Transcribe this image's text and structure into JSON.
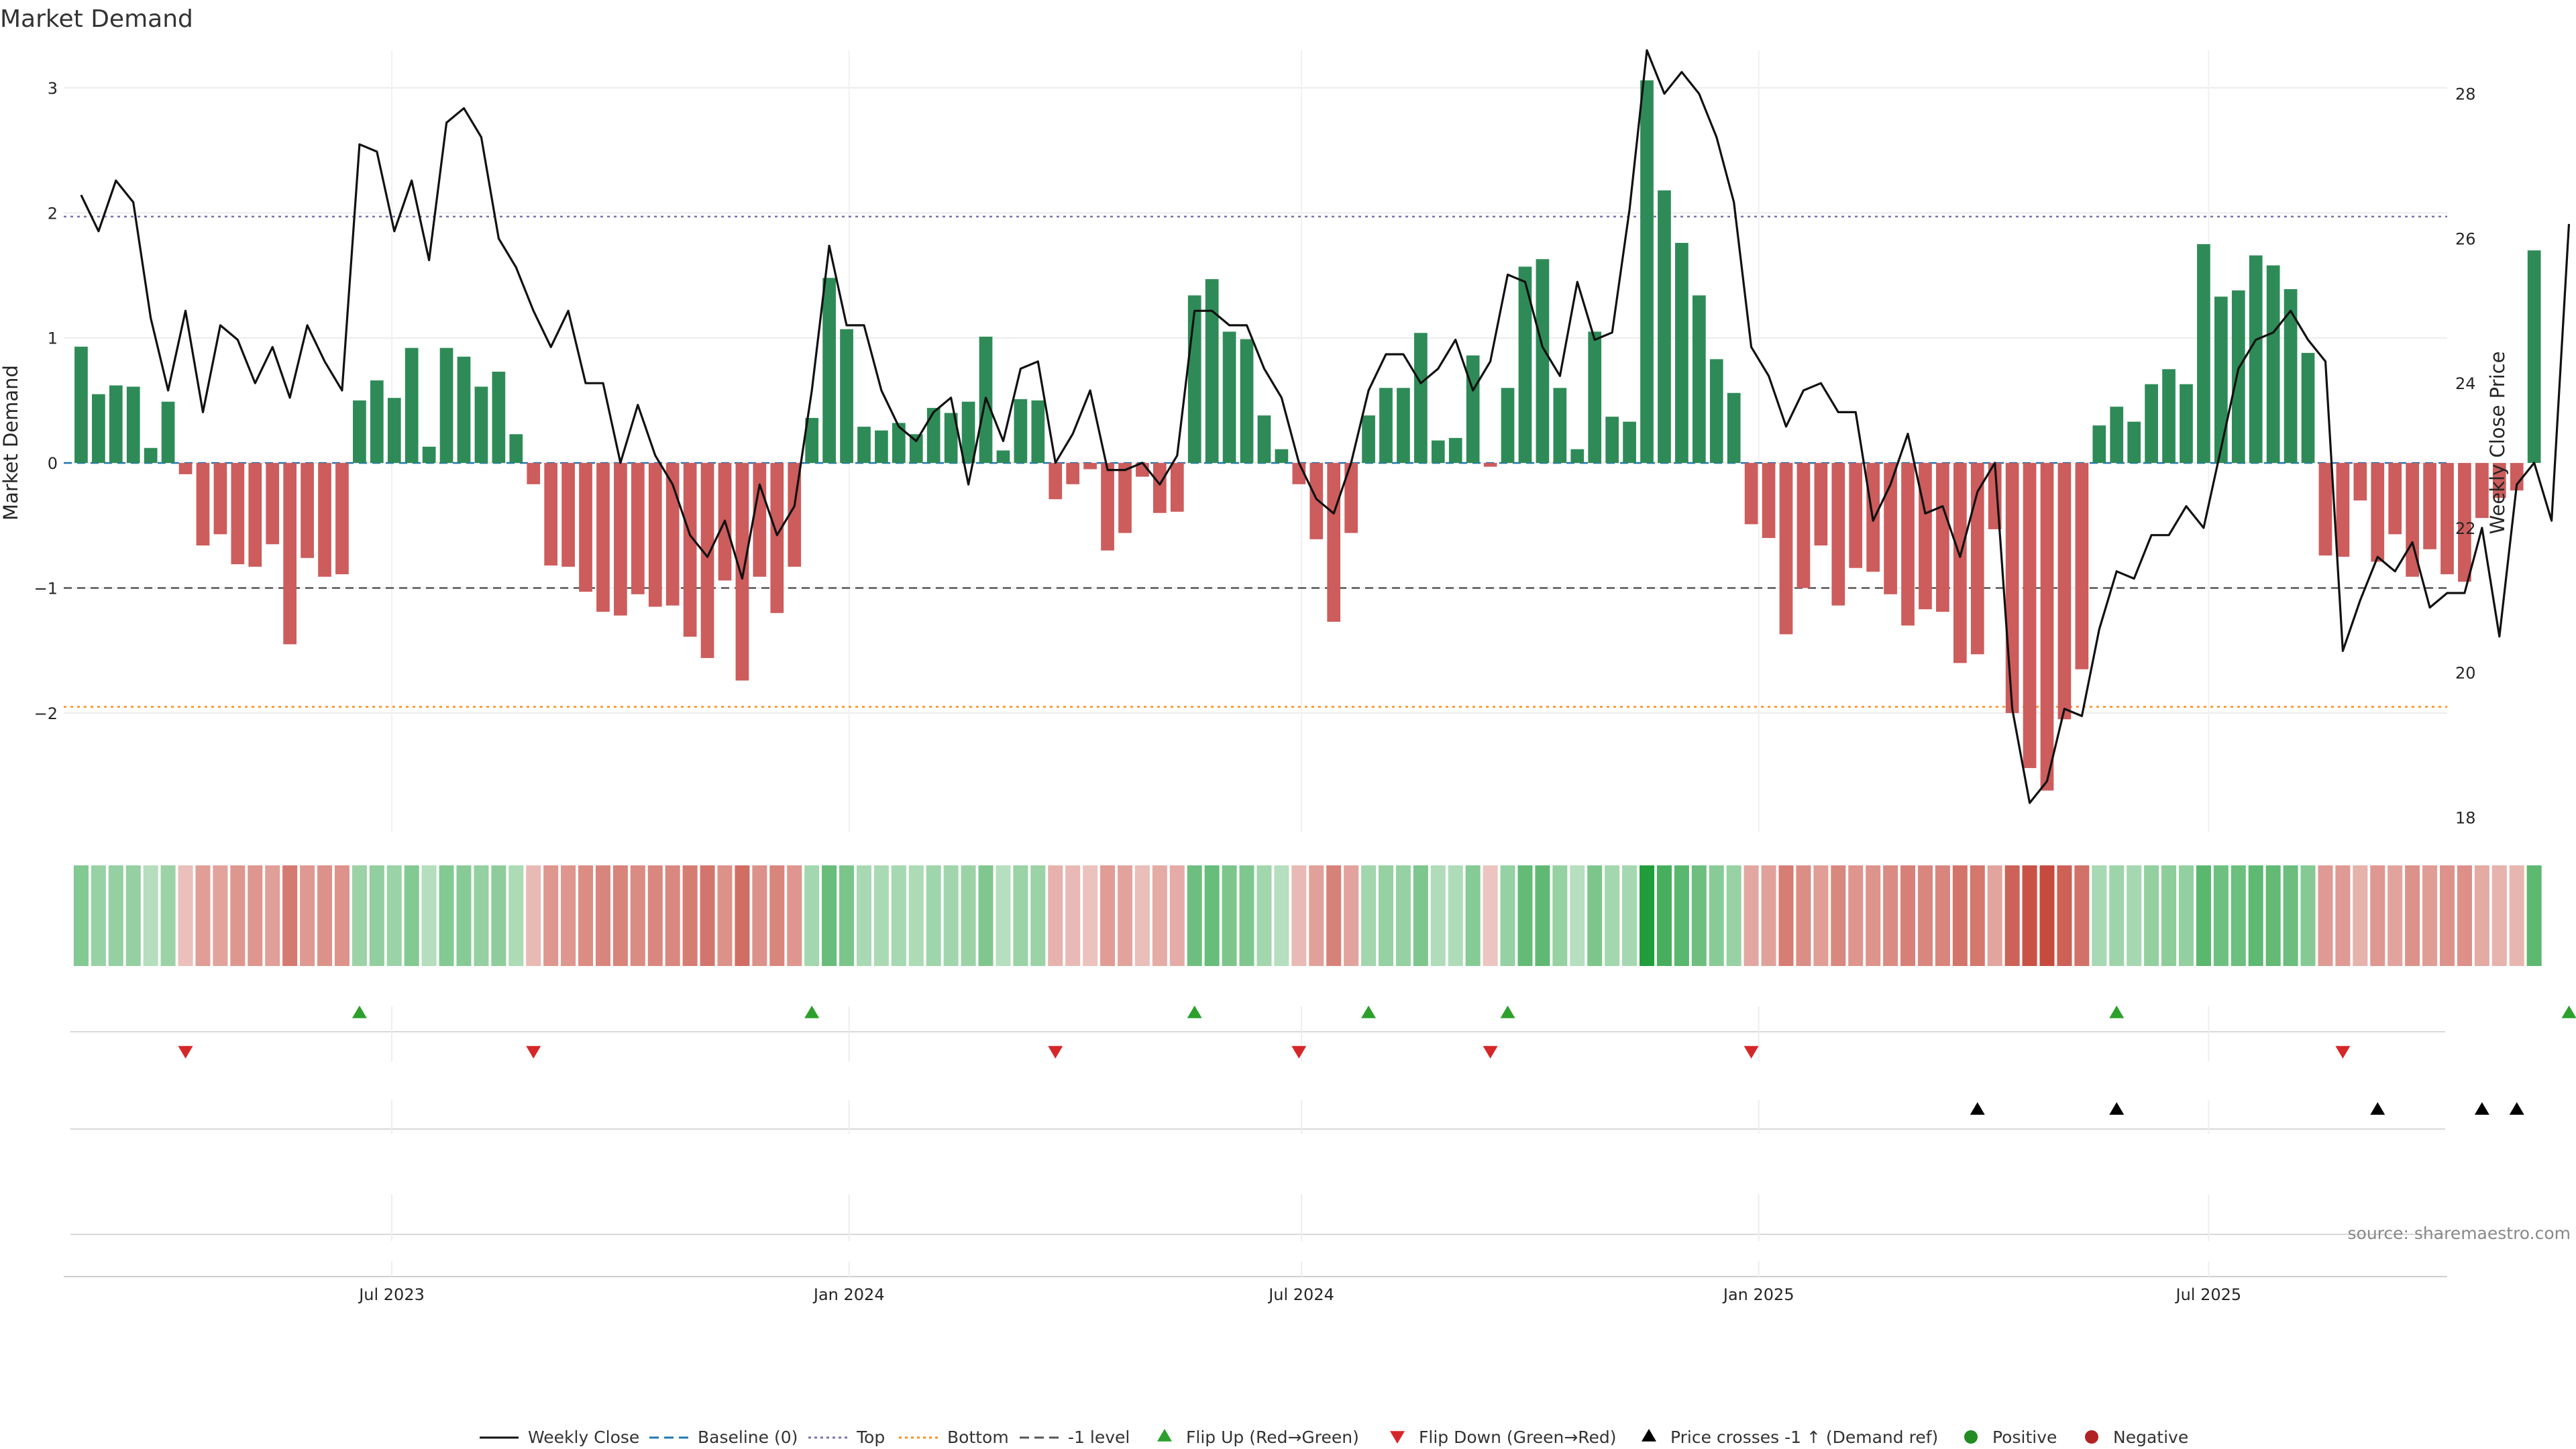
{
  "chart_data": {
    "type": "bar",
    "title": "Market Demand",
    "ylabel_left": "Market Demand",
    "ylabel_right": "Weekly Close Price",
    "ylim_left": [
      -2.95,
      3.3
    ],
    "yticks_left": [
      3,
      2,
      1,
      0,
      -1,
      -2
    ],
    "ytick_labels_left": [
      "3",
      "2",
      "1",
      "0",
      "−1",
      "−2"
    ],
    "ylim_right": [
      17.8,
      28.6
    ],
    "yticks_right": [
      28,
      26,
      24,
      22,
      20,
      18
    ],
    "ytick_labels_right": [
      "28",
      "26",
      "24",
      "22",
      "20",
      "18"
    ],
    "x_start": "2023-02-19",
    "x_end": "2025-10-05",
    "week_start": "2023-02-26",
    "xticks": [
      "2023-07-01",
      "2024-01-01",
      "2024-07-01",
      "2025-01-01",
      "2025-07-01"
    ],
    "xtick_labels": [
      "Jul 2023",
      "Jan 2024",
      "Jul 2024",
      "Jan 2025",
      "Jul 2025"
    ],
    "reference_lines": [
      {
        "name": "Baseline (0)",
        "value": 0,
        "color": "#1f77b4",
        "style": "dashed"
      },
      {
        "name": "Top",
        "value": 1.97,
        "color": "#7b6fb0",
        "style": "dotted"
      },
      {
        "name": "Bottom",
        "value": -1.95,
        "color": "#ff8c1a",
        "style": "dotted"
      },
      {
        "name": "-1 level",
        "value": -1,
        "color": "#555555",
        "style": "dashed"
      }
    ],
    "grid": true,
    "colors": {
      "positive": "#2e8b57",
      "negative": "#cd5c5c",
      "price_line": "#111111",
      "flip_up": "#2ca02c",
      "flip_down": "#d62728",
      "price_cross": "#000000",
      "legend_positive": "#228b22",
      "legend_negative": "#b22222"
    },
    "series": [
      {
        "name": "Market Demand",
        "type": "bar",
        "values": [
          0.93,
          0.55,
          0.62,
          0.61,
          0.12,
          0.49,
          -0.09,
          -0.66,
          -0.57,
          -0.81,
          -0.83,
          -0.65,
          -1.45,
          -0.76,
          -0.91,
          -0.89,
          0.5,
          0.66,
          0.52,
          0.92,
          0.13,
          0.92,
          0.85,
          0.61,
          0.73,
          0.23,
          -0.17,
          -0.82,
          -0.83,
          -1.03,
          -1.19,
          -1.22,
          -1.05,
          -1.15,
          -1.14,
          -1.39,
          -1.56,
          -0.94,
          -1.74,
          -0.91,
          -1.2,
          -0.83,
          0.36,
          1.48,
          1.07,
          0.29,
          0.26,
          0.32,
          0.23,
          0.44,
          0.4,
          0.49,
          1.01,
          0.1,
          0.51,
          0.5,
          -0.29,
          -0.17,
          -0.05,
          -0.7,
          -0.56,
          -0.11,
          -0.4,
          -0.39,
          1.34,
          1.47,
          1.05,
          0.99,
          0.38,
          0.11,
          -0.17,
          -0.61,
          -1.27,
          -0.56,
          0.38,
          0.6,
          0.6,
          1.04,
          0.18,
          0.2,
          0.86,
          -0.03,
          0.6,
          1.57,
          1.63,
          0.6,
          0.11,
          1.05,
          0.37,
          0.33,
          3.06,
          2.18,
          1.76,
          1.34,
          0.83,
          0.56,
          -0.49,
          -0.6,
          -1.37,
          -1.0,
          -0.66,
          -1.14,
          -0.84,
          -0.87,
          -1.05,
          -1.3,
          -1.17,
          -1.19,
          -1.6,
          -1.53,
          -0.53,
          -2.0,
          -2.44,
          -2.62,
          -2.05,
          -1.65,
          0.3,
          0.45,
          0.33,
          0.63,
          0.75,
          0.63,
          1.75,
          1.33,
          1.38,
          1.66,
          1.58,
          1.39,
          0.88,
          -0.74,
          -0.75,
          -0.3,
          -0.79,
          -0.57,
          -0.91,
          -0.69,
          -0.89,
          -0.95,
          -0.44,
          -0.28,
          -0.22,
          1.7
        ]
      },
      {
        "name": "Weekly Close",
        "type": "line",
        "axis": "right",
        "values": [
          26.6,
          26.1,
          26.8,
          26.5,
          24.9,
          23.9,
          25.0,
          23.6,
          24.8,
          24.6,
          24.0,
          24.5,
          23.8,
          24.8,
          24.3,
          23.9,
          27.3,
          27.2,
          26.1,
          26.8,
          25.7,
          27.6,
          27.8,
          27.4,
          26.0,
          25.6,
          25.0,
          24.5,
          25.0,
          24.0,
          24.0,
          22.9,
          23.7,
          23.0,
          22.6,
          21.9,
          21.6,
          22.1,
          21.3,
          22.6,
          21.9,
          22.3,
          23.9,
          25.9,
          24.8,
          24.8,
          23.9,
          23.4,
          23.2,
          23.6,
          23.8,
          22.6,
          23.8,
          23.2,
          24.2,
          24.3,
          22.9,
          23.3,
          23.9,
          22.8,
          22.8,
          22.9,
          22.6,
          23.0,
          25.0,
          25.0,
          24.8,
          24.8,
          24.2,
          23.8,
          22.9,
          22.4,
          22.2,
          22.9,
          23.9,
          24.4,
          24.4,
          24.0,
          24.2,
          24.6,
          23.9,
          24.3,
          25.5,
          25.4,
          24.5,
          24.1,
          25.4,
          24.6,
          24.7,
          26.4,
          28.6,
          28.0,
          28.3,
          28.0,
          27.4,
          26.5,
          24.5,
          24.1,
          23.4,
          23.9,
          24.0,
          23.6,
          23.6,
          22.1,
          22.6,
          23.3,
          22.2,
          22.3,
          21.6,
          22.5,
          22.9,
          19.5,
          18.2,
          18.5,
          19.5,
          19.4,
          20.6,
          21.4,
          21.3,
          21.9,
          21.9,
          22.3,
          22.0,
          23.1,
          24.2,
          24.6,
          24.7,
          25.0,
          24.6,
          24.3,
          20.3,
          21.0,
          21.6,
          21.4,
          21.8,
          20.9,
          21.1,
          21.1,
          22.0,
          20.5,
          22.6,
          22.9,
          22.1,
          26.2
        ]
      }
    ],
    "signals": {
      "flip_up_weeks": [
        16,
        42,
        64,
        74,
        82,
        117,
        143
      ],
      "flip_down_weeks": [
        6,
        26,
        56,
        70,
        81,
        96,
        130
      ],
      "price_cross_weeks": [
        109,
        117,
        132,
        138,
        140
      ]
    },
    "legend": {
      "position": "bottom-center",
      "items": [
        {
          "label": "Weekly Close",
          "marker": "line",
          "color": "#111111"
        },
        {
          "label": "Baseline (0)",
          "marker": "dashed",
          "color": "#1f77b4"
        },
        {
          "label": "Top",
          "marker": "dotted",
          "color": "#7b6fb0"
        },
        {
          "label": "Bottom",
          "marker": "dotted",
          "color": "#ff8c1a"
        },
        {
          "label": "-1 level",
          "marker": "dashed",
          "color": "#555555"
        },
        {
          "label": "Flip Up (Red→Green)",
          "marker": "triangle-up",
          "color": "#2ca02c"
        },
        {
          "label": "Flip Down (Green→Red)",
          "marker": "triangle-down",
          "color": "#d62728"
        },
        {
          "label": "Price crosses -1 ↑ (Demand ref)",
          "marker": "triangle-up",
          "color": "#000000"
        },
        {
          "label": "Positive",
          "marker": "circle",
          "color": "#228b22"
        },
        {
          "label": "Negative",
          "marker": "circle",
          "color": "#b22222"
        }
      ]
    },
    "source": "source: sharemaestro.com"
  }
}
